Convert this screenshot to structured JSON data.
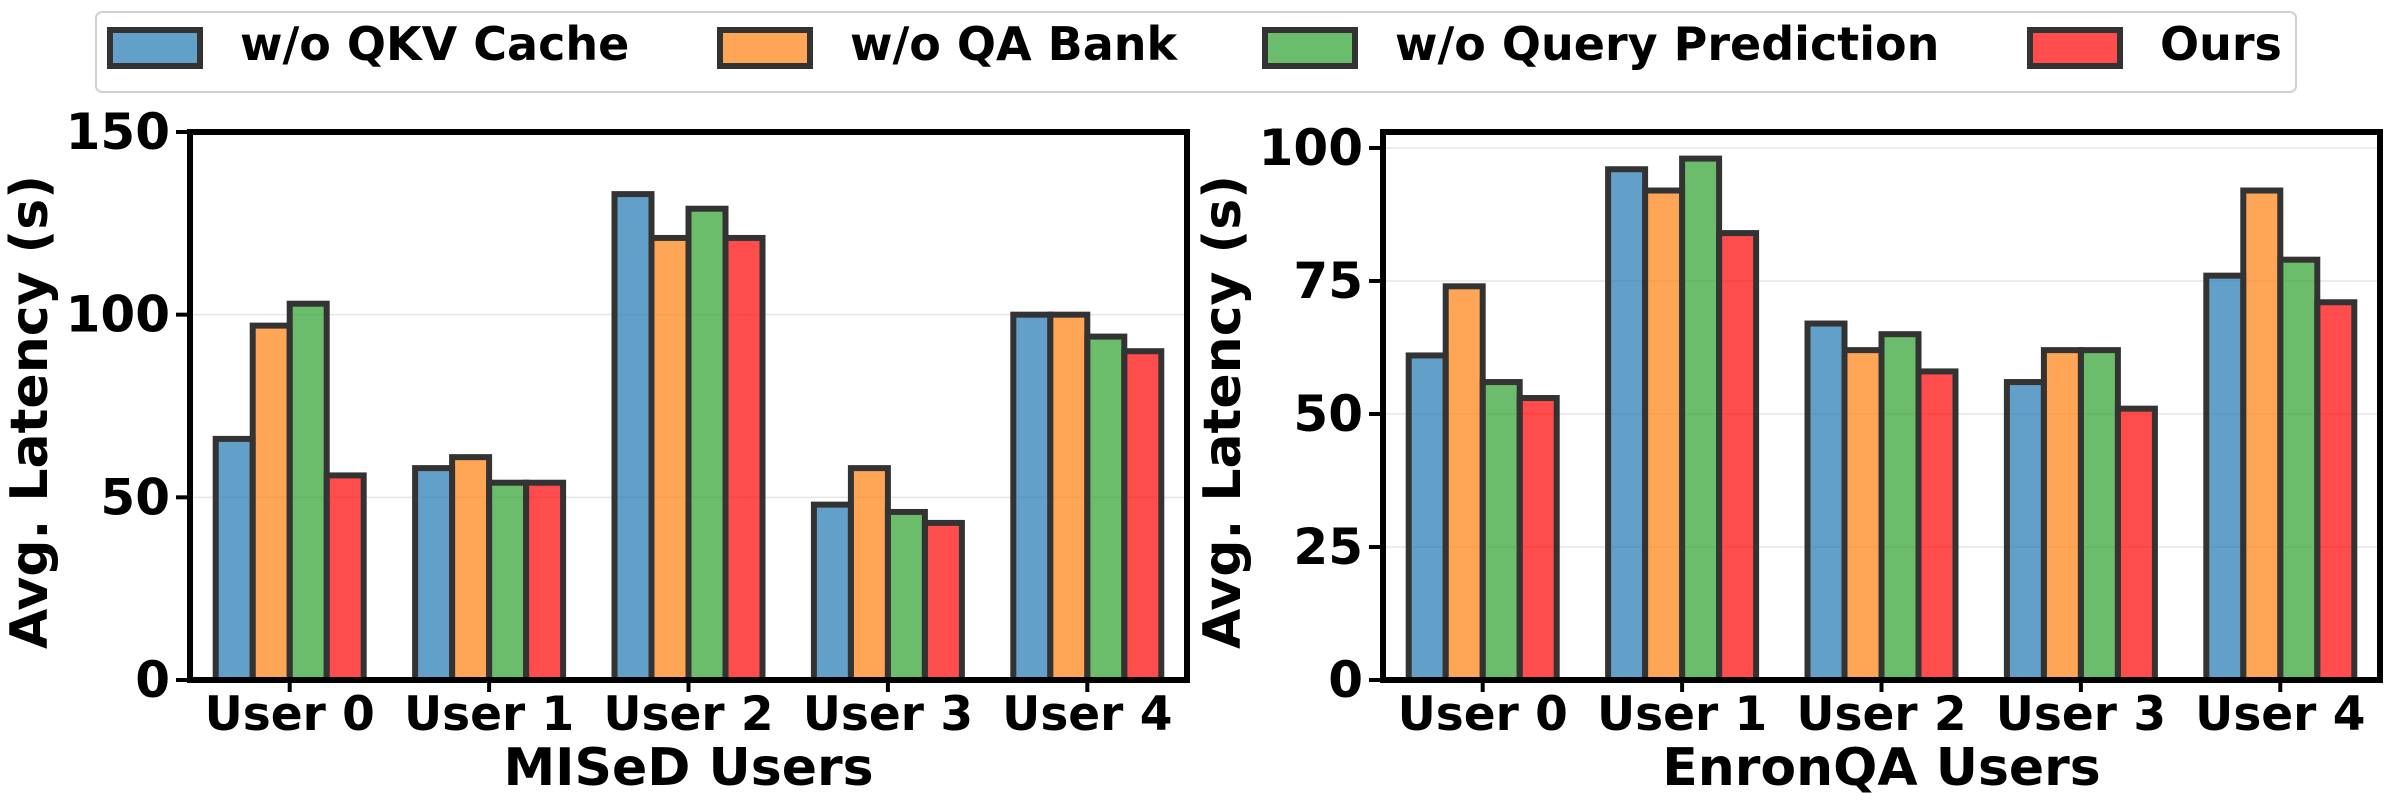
{
  "legend": [
    {
      "label": "w/o QKV Cache",
      "color": "#1f77b4"
    },
    {
      "label": "w/o QA Bank",
      "color": "#ff7f0e"
    },
    {
      "label": "w/o Query Prediction",
      "color": "#2ca02c"
    },
    {
      "label": "Ours",
      "color": "#ff0000"
    }
  ],
  "chart_data": [
    {
      "type": "bar",
      "title": "",
      "xlabel": "MISeD Users",
      "ylabel": "Avg. Latency (s)",
      "categories": [
        "User 0",
        "User 1",
        "User 2",
        "User 3",
        "User 4"
      ],
      "ylim": [
        0,
        150
      ],
      "yticks": [
        0,
        50,
        100,
        150
      ],
      "grid": true,
      "series": [
        {
          "name": "w/o QKV Cache",
          "color": "#1f77b4",
          "values": [
            66,
            58,
            133,
            48,
            100
          ]
        },
        {
          "name": "w/o QA Bank",
          "color": "#ff7f0e",
          "values": [
            97,
            61,
            121,
            58,
            100
          ]
        },
        {
          "name": "w/o Query Prediction",
          "color": "#2ca02c",
          "values": [
            103,
            54,
            129,
            46,
            94
          ]
        },
        {
          "name": "Ours",
          "color": "#ff0000",
          "values": [
            56,
            54,
            121,
            43,
            90
          ]
        }
      ]
    },
    {
      "type": "bar",
      "title": "",
      "xlabel": "EnronQA Users",
      "ylabel": "Avg. Latency (s)",
      "categories": [
        "User 0",
        "User 1",
        "User 2",
        "User 3",
        "User 4"
      ],
      "ylim": [
        0,
        103
      ],
      "yticks": [
        0,
        25,
        50,
        75,
        100
      ],
      "grid": true,
      "series": [
        {
          "name": "w/o QKV Cache",
          "color": "#1f77b4",
          "values": [
            61,
            96,
            67,
            56,
            76
          ]
        },
        {
          "name": "w/o QA Bank",
          "color": "#ff7f0e",
          "values": [
            74,
            92,
            62,
            62,
            92
          ]
        },
        {
          "name": "w/o Query Prediction",
          "color": "#2ca02c",
          "values": [
            56,
            98,
            65,
            62,
            79
          ]
        },
        {
          "name": "Ours",
          "color": "#ff0000",
          "values": [
            53,
            84,
            58,
            51,
            71
          ]
        }
      ]
    }
  ]
}
